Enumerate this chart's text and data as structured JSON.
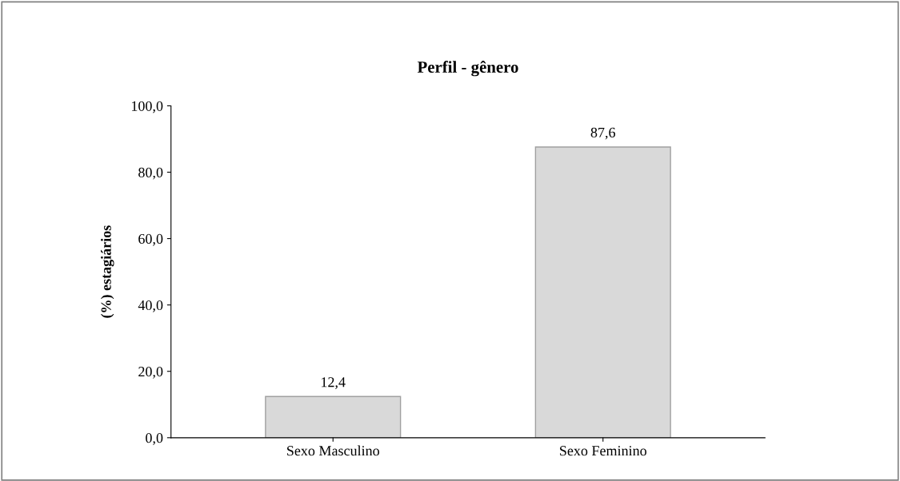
{
  "chart_data": {
    "type": "bar",
    "title": "Perfil - gênero",
    "ylabel": "(%) estagiários",
    "categories": [
      "Sexo Masculino",
      "Sexo Feminino"
    ],
    "values": [
      12.4,
      87.6
    ],
    "value_labels": [
      "12,4",
      "87,6"
    ],
    "color": "#d9d9d9",
    "ylim": [
      0,
      100
    ],
    "yticks": [
      {
        "value": 0,
        "label": "0,0"
      },
      {
        "value": 20,
        "label": "20,0"
      },
      {
        "value": 40,
        "label": "40,0"
      },
      {
        "value": 60,
        "label": "60,0"
      },
      {
        "value": 80,
        "label": "80,0"
      },
      {
        "value": 100,
        "label": "100,0"
      }
    ],
    "grid": false
  }
}
